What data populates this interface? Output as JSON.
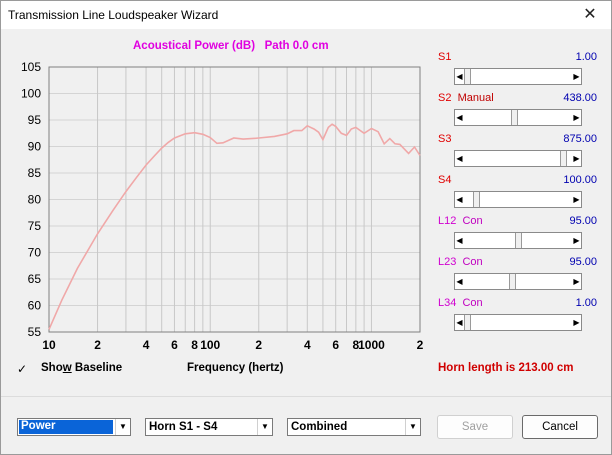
{
  "window": {
    "title": "Transmission Line Loudspeaker Wizard",
    "close_glyph": "✕"
  },
  "chart_title": "Acoustical Power (dB)   Path 0.0 cm",
  "chart_data": {
    "type": "line",
    "title": "Acoustical Power (dB)   Path 0.0 cm",
    "xlabel": "Frequency (hertz)",
    "ylabel": "",
    "x_scale": "log",
    "xlim": [
      10,
      2000
    ],
    "ylim": [
      55,
      105
    ],
    "grid": true,
    "y_ticks": [
      105,
      100,
      95,
      90,
      85,
      80,
      75,
      70,
      65,
      60,
      55
    ],
    "x_tick_labels": [
      {
        "label": "10",
        "value": 10
      },
      {
        "label": "2",
        "value": 20
      },
      {
        "label": "4",
        "value": 40
      },
      {
        "label": "6",
        "value": 60
      },
      {
        "label": "8",
        "value": 80
      },
      {
        "label": "100",
        "value": 100
      },
      {
        "label": "2",
        "value": 200
      },
      {
        "label": "4",
        "value": 400
      },
      {
        "label": "6",
        "value": 600
      },
      {
        "label": "8",
        "value": 800
      },
      {
        "label": "1000",
        "value": 1000
      },
      {
        "label": "2",
        "value": 2000
      }
    ],
    "series": [
      {
        "color": "#f0a8a8",
        "x": [
          10,
          12,
          15,
          20,
          25,
          30,
          35,
          40,
          45,
          50,
          55,
          60,
          70,
          80,
          90,
          100,
          110,
          120,
          140,
          160,
          180,
          200,
          250,
          300,
          330,
          370,
          400,
          440,
          470,
          500,
          540,
          570,
          600,
          650,
          700,
          750,
          800,
          900,
          1000,
          1100,
          1200,
          1300,
          1400,
          1500,
          1700,
          1850,
          2000
        ],
        "y": [
          55.5,
          61,
          67,
          73.5,
          78,
          81.5,
          84.2,
          86.5,
          88.2,
          89.7,
          90.8,
          91.6,
          92.4,
          92.6,
          92.3,
          91.7,
          90.6,
          90.7,
          91.6,
          91.4,
          91.5,
          91.6,
          91.9,
          92.4,
          93,
          93,
          93.9,
          93.3,
          92.7,
          91.3,
          93.6,
          94.2,
          93.8,
          92.5,
          92.1,
          93.3,
          93.6,
          92.5,
          93.4,
          92.8,
          90.5,
          91.5,
          90.5,
          90.4,
          88.7,
          89.9,
          88.3
        ]
      }
    ]
  },
  "baseline": {
    "checked": true,
    "check_glyph": "✓",
    "label_pre": "Sho",
    "label_accel": "w",
    "label_post": " Baseline"
  },
  "frequency_label": "Frequency (hertz)",
  "horn_length": "Horn length is 213.00 cm",
  "sliders": [
    {
      "name": "S1",
      "mode": "",
      "value": "1.00",
      "level": 0.0,
      "label_color": "red"
    },
    {
      "name": "S2",
      "mode": "Manual",
      "value": "438.00",
      "level": 0.47,
      "label_color": "red"
    },
    {
      "name": "S3",
      "mode": "",
      "value": "875.00",
      "level": 0.95,
      "label_color": "red"
    },
    {
      "name": "S4",
      "mode": "",
      "value": "100.00",
      "level": 0.09,
      "label_color": "red"
    },
    {
      "name": "L12",
      "mode": "Con",
      "value": "95.00",
      "level": 0.5,
      "label_color": "magenta"
    },
    {
      "name": "L23",
      "mode": "Con",
      "value": "95.00",
      "level": 0.45,
      "label_color": "magenta"
    },
    {
      "name": "L34",
      "mode": "Con",
      "value": "1.00",
      "level": 0.0,
      "label_color": "magenta"
    }
  ],
  "dropdowns": {
    "mode": "Power",
    "range": "Horn S1 - S4",
    "view": "Combined",
    "arrow_glyph": "▼"
  },
  "buttons": {
    "save": "Save",
    "cancel": "Cancel"
  },
  "arrows": {
    "left": "◀",
    "right": "▶"
  }
}
